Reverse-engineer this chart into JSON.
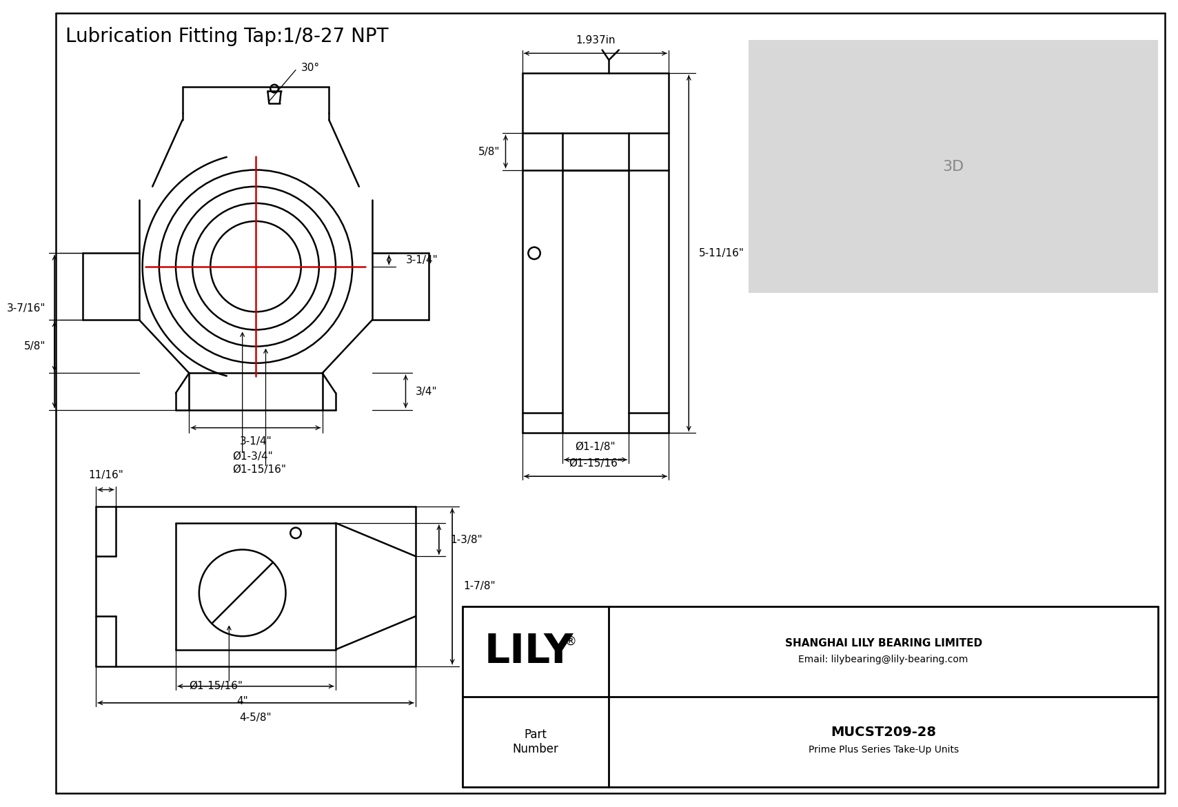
{
  "title": "Lubrication Fitting Tap:1/8-27 NPT",
  "bg_color": "#ffffff",
  "line_color": "#000000",
  "dim_color": "#000000",
  "red_color": "#cc0000",
  "title_fontsize": 20,
  "dim_fontsize": 11,
  "lily_fontsize": 40,
  "company_name": "SHANGHAI LILY BEARING LIMITED",
  "company_email": "Email: lilybearing@lily-bearing.com",
  "part_label": "Part\nNumber",
  "part_number": "MUCST209-28",
  "part_series": "Prime Plus Series Take-Up Units",
  "annotation_30deg": "30°",
  "dim_3_14_top": "3-1/4\"",
  "dim_3_716": "3-7/16\"",
  "dim_58_left": "5/8\"",
  "dim_34": "3/4\"",
  "dim_dia_134": "Ø1-3/4\"",
  "dim_dia_11516_front": "Ø1-15/16\"",
  "dim_314_bottom": "3-1/4\"",
  "dim_1937": "1.937in",
  "dim_5_1116": "5-11/16\"",
  "dim_58_side": "5/8\"",
  "dim_dia_118": "Ø1-1/8\"",
  "dim_dia_11516_side": "Ø1-15/16\"",
  "dim_1116": "11/16\"",
  "dim_1_78": "1-7/8\"",
  "dim_1_38": "1-3/8\"",
  "dim_dia_11516_bot": "Ø1-15/16\"",
  "dim_4": "4\"",
  "dim_4_58": "4-5/8\""
}
